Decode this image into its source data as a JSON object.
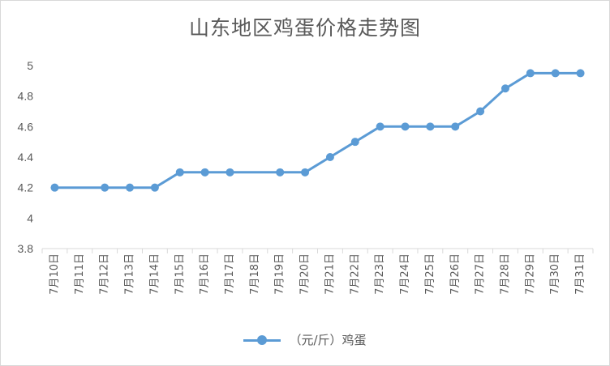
{
  "chart_data": {
    "type": "line",
    "title": "山东地区鸡蛋价格走势图",
    "xlabel": "",
    "ylabel": "",
    "categories": [
      "7月10日",
      "7月11日",
      "7月12日",
      "7月13日",
      "7月14日",
      "7月15日",
      "7月16日",
      "7月17日",
      "7月18日",
      "7月19日",
      "7月20日",
      "7月21日",
      "7月22日",
      "7月23日",
      "7月24日",
      "7月25日",
      "7月26日",
      "7月27日",
      "7月28日",
      "7月29日",
      "7月30日",
      "7月31日"
    ],
    "series": [
      {
        "name": "（元/斤）鸡蛋",
        "color": "#5b9bd5",
        "values": [
          4.2,
          null,
          4.2,
          4.2,
          4.2,
          4.3,
          4.3,
          4.3,
          null,
          4.3,
          4.3,
          4.4,
          4.5,
          4.6,
          4.6,
          4.6,
          4.6,
          4.7,
          4.85,
          4.95,
          4.95,
          4.95
        ]
      }
    ],
    "ylim": [
      3.8,
      5
    ],
    "yticks": [
      "3.8",
      "4",
      "4.2",
      "4.4",
      "4.6",
      "4.8",
      "5"
    ],
    "grid": false,
    "legend": "bottom",
    "show_gaps": false
  }
}
